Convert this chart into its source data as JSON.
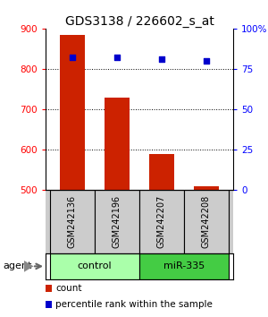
{
  "title": "GDS3138 / 226602_s_at",
  "samples": [
    "GSM242136",
    "GSM242196",
    "GSM242207",
    "GSM242208"
  ],
  "counts": [
    885,
    730,
    590,
    510
  ],
  "percentiles": [
    82,
    82,
    81,
    80
  ],
  "ylim_left": [
    500,
    900
  ],
  "ylim_right": [
    0,
    100
  ],
  "yticks_left": [
    500,
    600,
    700,
    800,
    900
  ],
  "yticks_right": [
    0,
    25,
    50,
    75,
    100
  ],
  "bar_color": "#cc2200",
  "dot_color": "#0000cc",
  "groups": [
    {
      "label": "control",
      "samples": [
        0,
        1
      ],
      "color": "#aaffaa"
    },
    {
      "label": "miR-335",
      "samples": [
        2,
        3
      ],
      "color": "#44cc44"
    }
  ],
  "agent_label": "agent",
  "legend_items": [
    {
      "label": "count",
      "color": "#cc2200"
    },
    {
      "label": "percentile rank within the sample",
      "color": "#0000cc"
    }
  ],
  "sample_box_color": "#cccccc",
  "background_color": "#ffffff",
  "grid_lines": [
    600,
    700,
    800
  ],
  "title_fontsize": 10,
  "tick_fontsize": 7.5,
  "sample_fontsize": 7,
  "group_fontsize": 8,
  "legend_fontsize": 7.5
}
